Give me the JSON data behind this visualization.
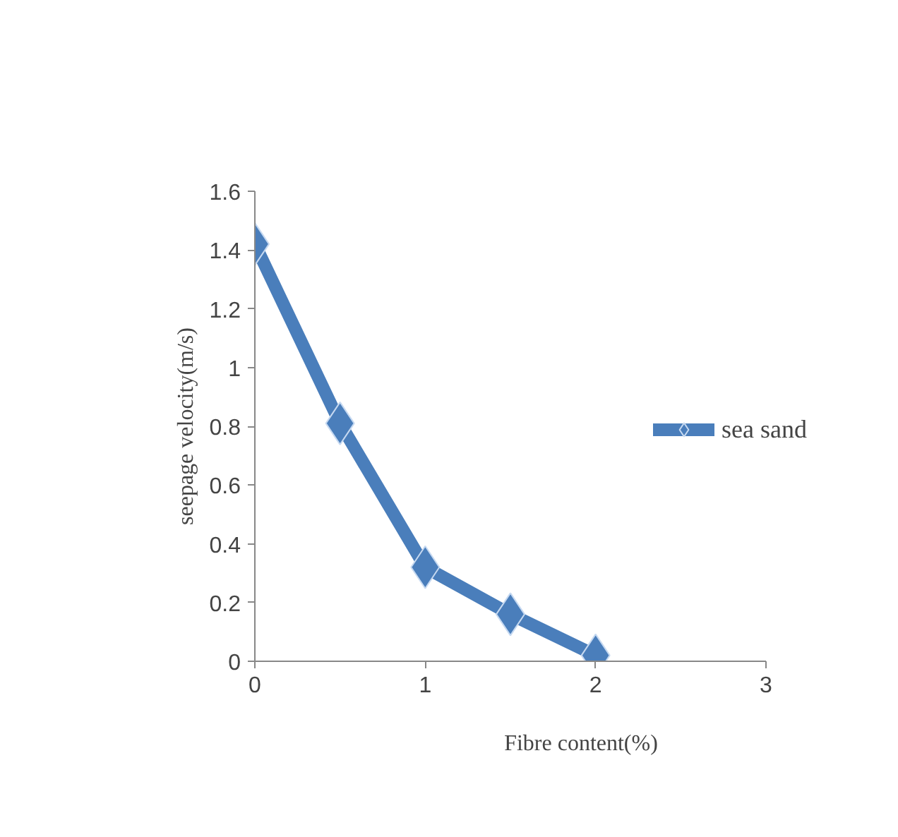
{
  "chart_data": {
    "type": "line",
    "xlabel": "Fibre content(%)",
    "ylabel": "seepage velocity(m/s)",
    "x": [
      0,
      0.5,
      1,
      1.5,
      2
    ],
    "series": [
      {
        "name": "sea sand",
        "color": "#4a7ebb",
        "values": [
          1.42,
          0.81,
          0.32,
          0.16,
          0.02
        ]
      }
    ],
    "xlim": [
      0,
      3
    ],
    "xticks": [
      0,
      1,
      2,
      3
    ],
    "ylim": [
      0,
      1.6
    ],
    "yticks": [
      0,
      0.2,
      0.4,
      0.6,
      0.8,
      1,
      1.2,
      1.4,
      1.6
    ],
    "marker": "diamond",
    "line_style": "solid",
    "legend": "right",
    "grid": false
  }
}
